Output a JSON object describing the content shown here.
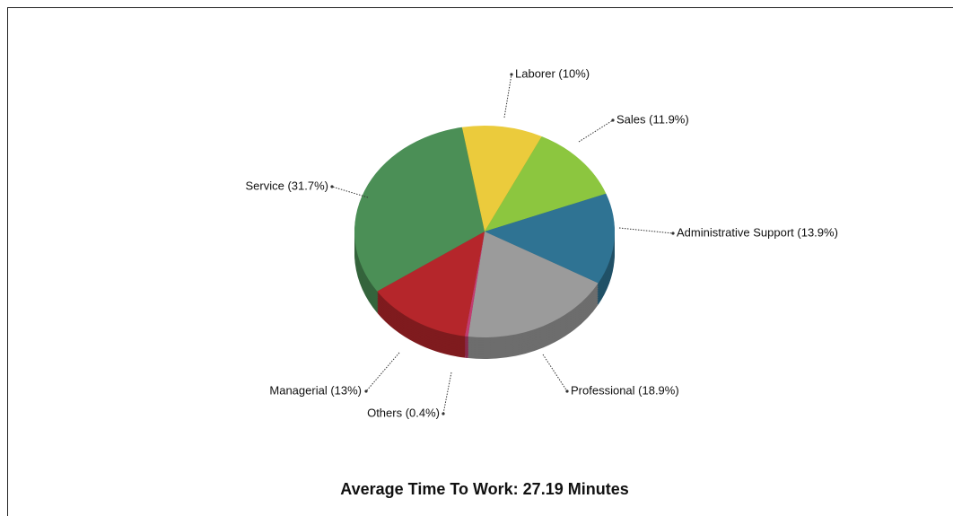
{
  "chart_data": {
    "type": "pie",
    "title": "Average Time To Work: 27.19 Minutes",
    "values": [
      10,
      11.9,
      13.9,
      18.9,
      0.4,
      13,
      31.7
    ],
    "value_labels": [
      "Laborer (10%)",
      "Sales (11.9%)",
      "Administrative Support (13.9%)",
      "Professional (18.9%)",
      "Others (0.4%)",
      "Managerial (13%)",
      "Service (31.7%)"
    ],
    "colors": [
      "#ebcb3c",
      "#8cc63f",
      "#2f7393",
      "#9b9b9b",
      "#c23c70",
      "#b5262b",
      "#4b8f56"
    ]
  }
}
